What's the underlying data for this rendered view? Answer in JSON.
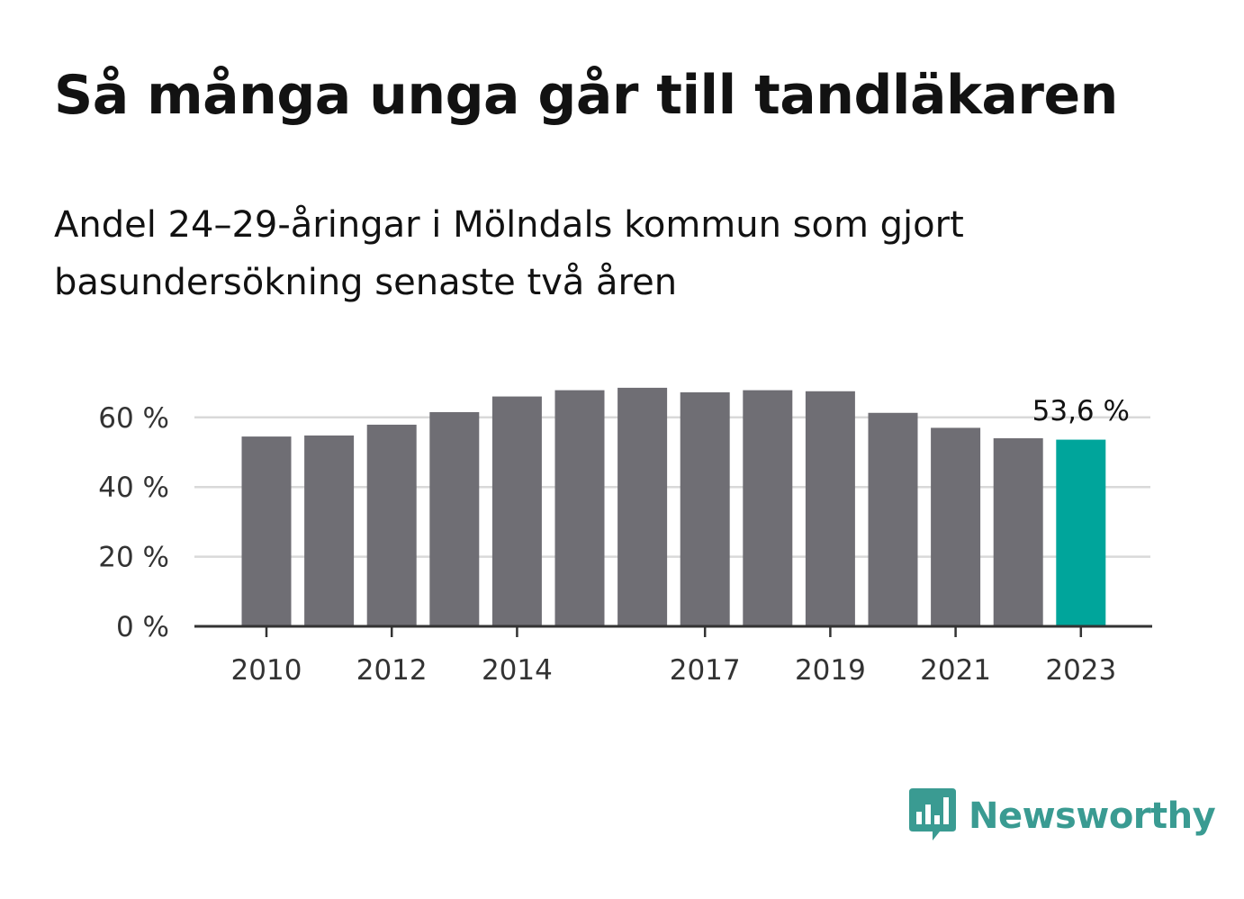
{
  "title": "Så många unga går till tandläkaren",
  "subtitle": "Andel 24–29-åringar i Mölndals kommun som gjort basundersökning senaste två åren",
  "brand": {
    "name": "Newsworthy",
    "color": "#3a9b92",
    "icon": "bar-chart-speech-bubble-icon"
  },
  "chart_data": {
    "type": "bar",
    "x": [
      2010,
      2011,
      2012,
      2013,
      2014,
      2015,
      2016,
      2017,
      2018,
      2019,
      2020,
      2021,
      2022,
      2023
    ],
    "values": [
      54.5,
      54.8,
      57.9,
      61.5,
      66.0,
      67.8,
      68.5,
      67.2,
      67.8,
      67.5,
      61.3,
      57.0,
      54.0,
      53.6
    ],
    "xticks": [
      "2010",
      "2012",
      "2014",
      "2017",
      "2019",
      "2021",
      "2023"
    ],
    "yticks": [
      "0 %",
      "20 %",
      "40 %",
      "60 %"
    ],
    "ylim": [
      0,
      70
    ],
    "grid": true,
    "bar_color": "#6f6e74",
    "highlight_color": "#00a59b",
    "highlight_index": 13,
    "highlight_label": "53,6 %"
  }
}
